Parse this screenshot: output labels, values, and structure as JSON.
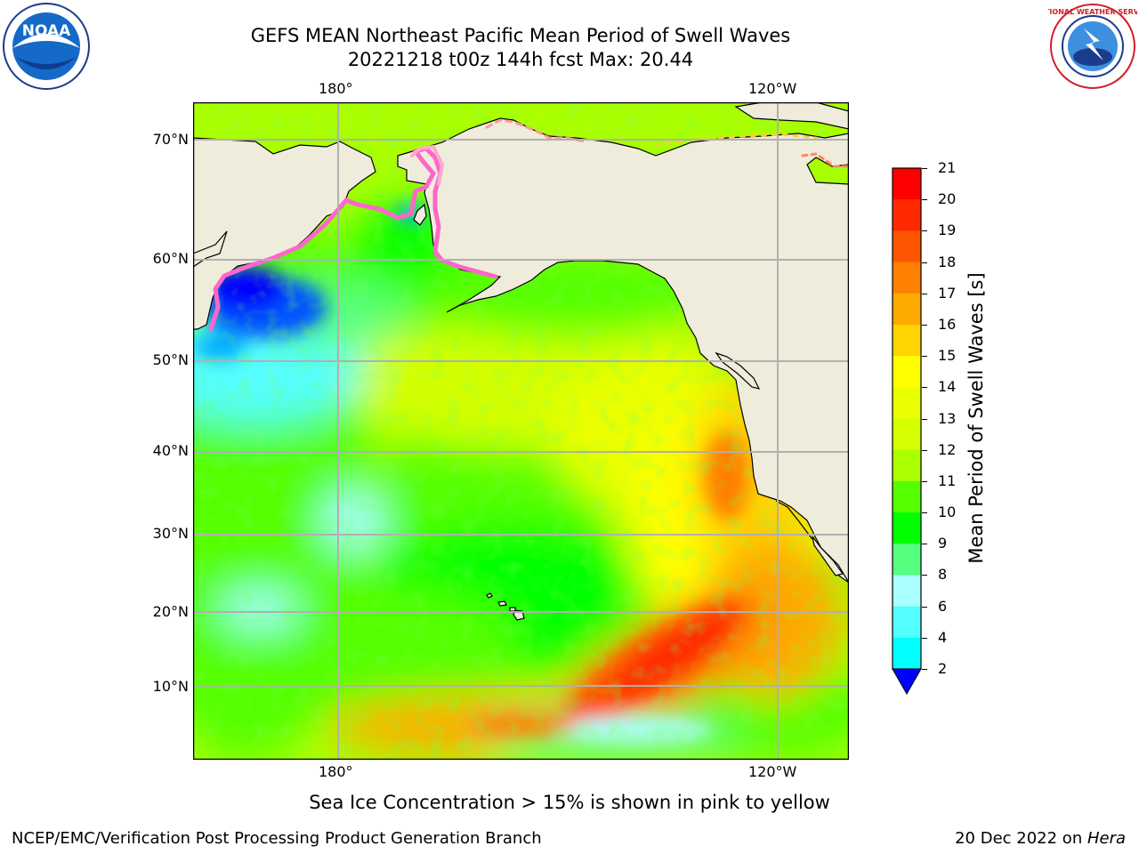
{
  "title": {
    "line1": "GEFS MEAN Northeast Pacific Mean Period of Swell Waves",
    "line2": "20221218 t00z 144h fcst   Max: 20.44"
  },
  "map": {
    "top_lon_labels": [
      "180°",
      "120°W"
    ],
    "bottom_lon_labels": [
      "180°",
      "120°W"
    ],
    "lat_labels": [
      "70°N",
      "60°N",
      "50°N",
      "40°N",
      "30°N",
      "20°N",
      "10°N"
    ],
    "land_color": "#efecdc",
    "grid_color": "#b0b0b0"
  },
  "colorbar": {
    "title": "Mean Period of Swell Waves [s]",
    "ticks": [
      "21",
      "20",
      "19",
      "18",
      "17",
      "16",
      "15",
      "14",
      "13",
      "12",
      "11",
      "10",
      "9",
      "8",
      "6",
      "4",
      "2"
    ],
    "colors": [
      "#ff0000",
      "#ff2a00",
      "#ff5500",
      "#ff7f00",
      "#ffaa00",
      "#ffd400",
      "#ffff00",
      "#eaff00",
      "#d4ff00",
      "#aaff00",
      "#55ff00",
      "#00ff00",
      "#55ff80",
      "#aaffff",
      "#55ffff",
      "#00ffff",
      "#00aaff",
      "#0055ff"
    ],
    "extend_color": "#0000ff"
  },
  "annotation": "Sea Ice Concentration > 15% is shown in pink to yellow",
  "footer": {
    "left": "NCEP/EMC/Verification Post Processing Product Generation Branch",
    "right_prefix": "20 Dec 2022 on ",
    "right_host": "Hera"
  },
  "logos": {
    "noaa_text": "NOAA",
    "nws_text": "NATIONAL WEATHER SERVICE"
  }
}
